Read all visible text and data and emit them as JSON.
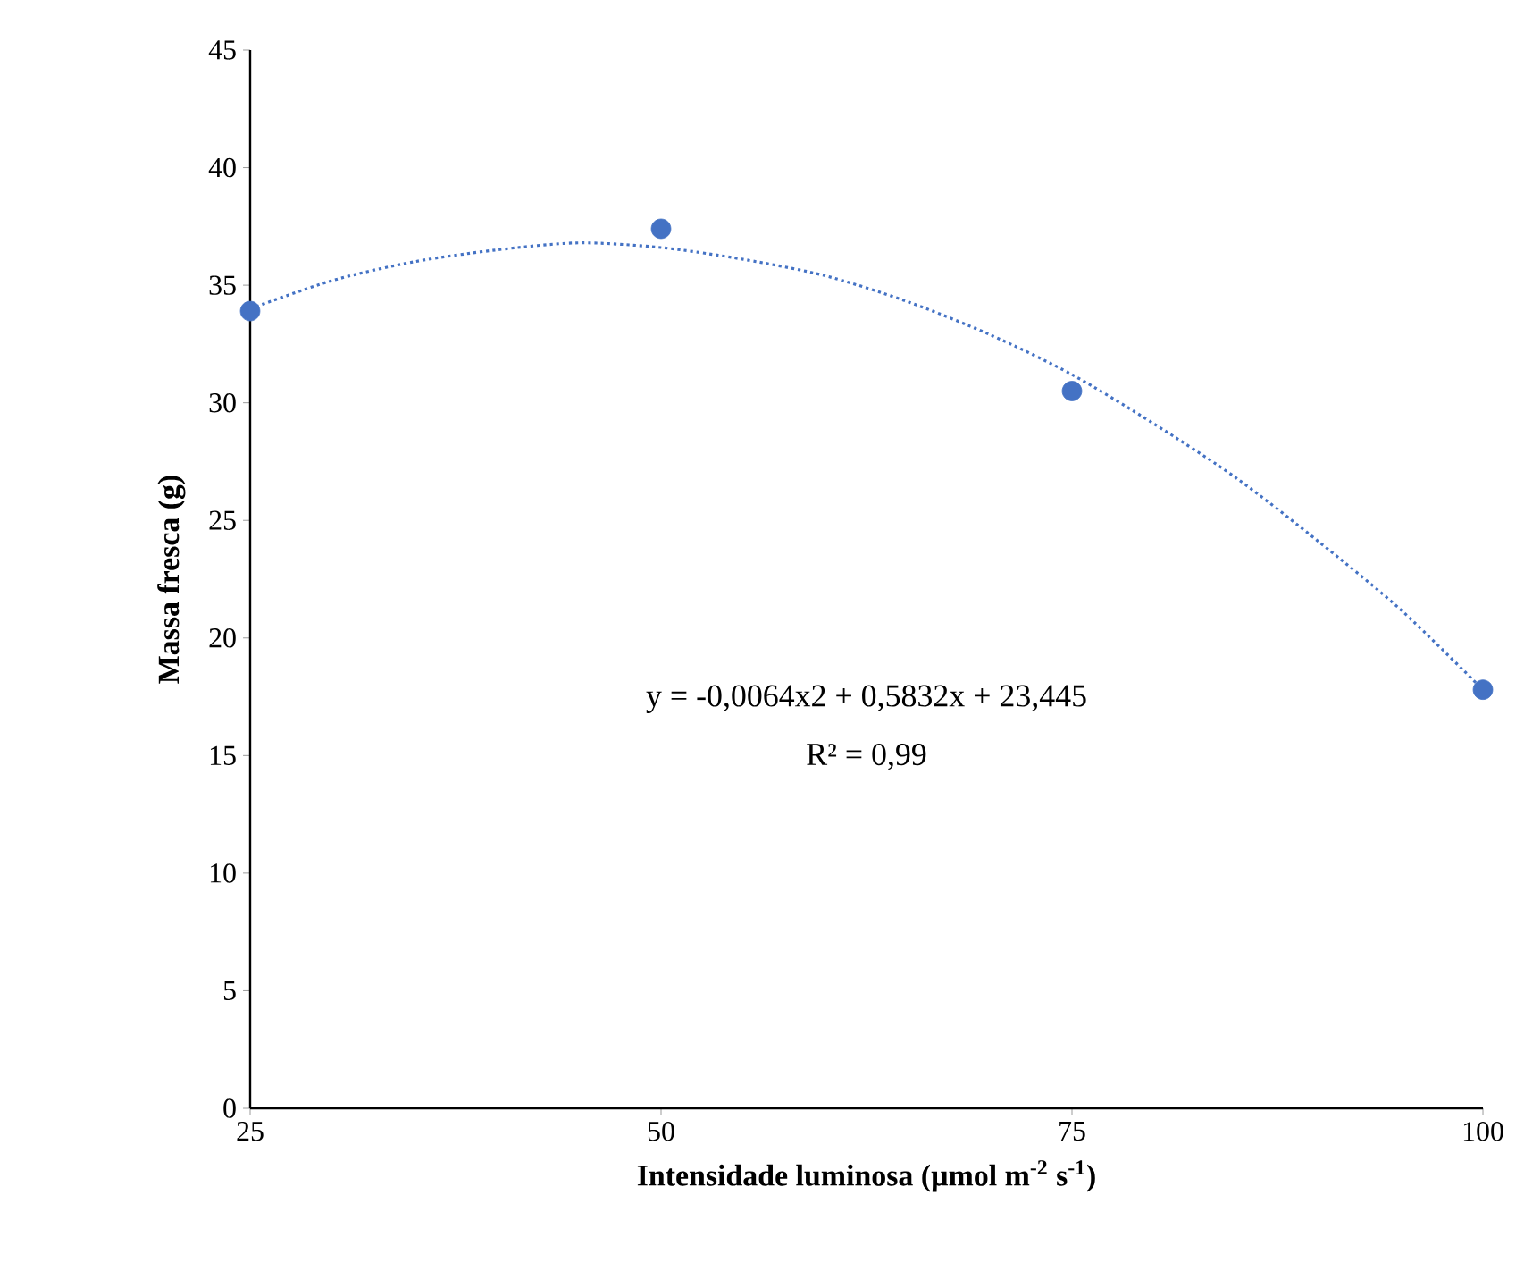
{
  "chart_data": {
    "type": "scatter",
    "xlabel": "Intensidade luminosa (µmol m$^{-2}$ s$^{-1}$)",
    "ylabel": "Massa fresca (g)",
    "x": [
      25,
      50,
      75,
      100
    ],
    "series": [
      {
        "color": "#4472c4",
        "values": [
          33.9,
          37.4,
          30.5,
          17.8
        ],
        "marker": "circle"
      },
      {
        "type": "line",
        "color": "#4472c4",
        "line_style": "dotted",
        "marker": "none",
        "x": [
          25,
          30,
          35,
          40,
          45,
          50,
          55,
          60,
          65,
          70,
          75,
          80,
          85,
          90,
          95,
          100
        ],
        "values": [
          34.0,
          35.2,
          36.0,
          36.5,
          36.8,
          36.6,
          36.1,
          35.4,
          34.3,
          32.9,
          31.2,
          29.1,
          26.8,
          24.1,
          21.2,
          17.8
        ]
      }
    ],
    "annotations": [
      "y = -0,0064x2 + 0,5832x + 23,445",
      "R² = 0,99"
    ],
    "xlim": [
      25,
      100
    ],
    "xticks": [
      25,
      50,
      75,
      100
    ],
    "ylim": [
      0,
      45
    ],
    "yticks": [
      0,
      5,
      10,
      15,
      20,
      25,
      30,
      35,
      40,
      45
    ],
    "grid": false
  }
}
